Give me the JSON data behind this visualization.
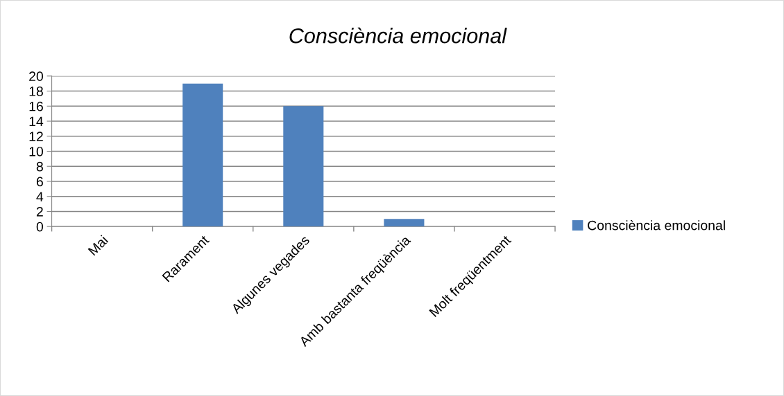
{
  "chart_data": {
    "type": "bar",
    "title": "Consciència emocional",
    "categories": [
      "Mai",
      "Rarament",
      "Algunes vegades",
      "Amb bastanta freqüència",
      "Molt freqüentment"
    ],
    "series": [
      {
        "name": "Consciència emocional",
        "color": "#4f81bd",
        "values": [
          0,
          19,
          16,
          1,
          0
        ]
      }
    ],
    "ylim": [
      0,
      20
    ],
    "yticks": [
      0,
      2,
      4,
      6,
      8,
      10,
      12,
      14,
      16,
      18,
      20
    ],
    "grid": "y",
    "legend": "right"
  }
}
